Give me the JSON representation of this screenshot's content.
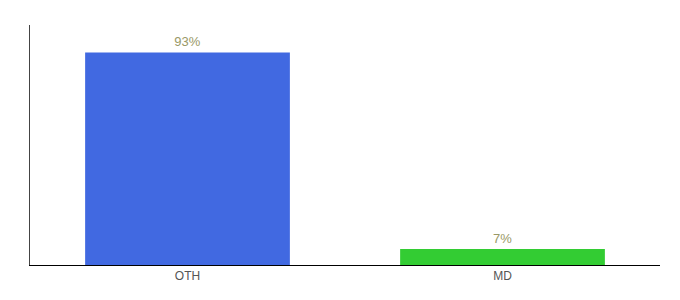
{
  "chart_data": {
    "type": "bar",
    "categories": [
      "OTH",
      "MD"
    ],
    "values": [
      93,
      7
    ],
    "value_labels": [
      "93%",
      "7%"
    ],
    "colors": [
      "#4169E1",
      "#33CC33"
    ],
    "ylim": [
      0,
      105
    ],
    "grid": false,
    "data_labels": true,
    "tick_labels": "x"
  }
}
